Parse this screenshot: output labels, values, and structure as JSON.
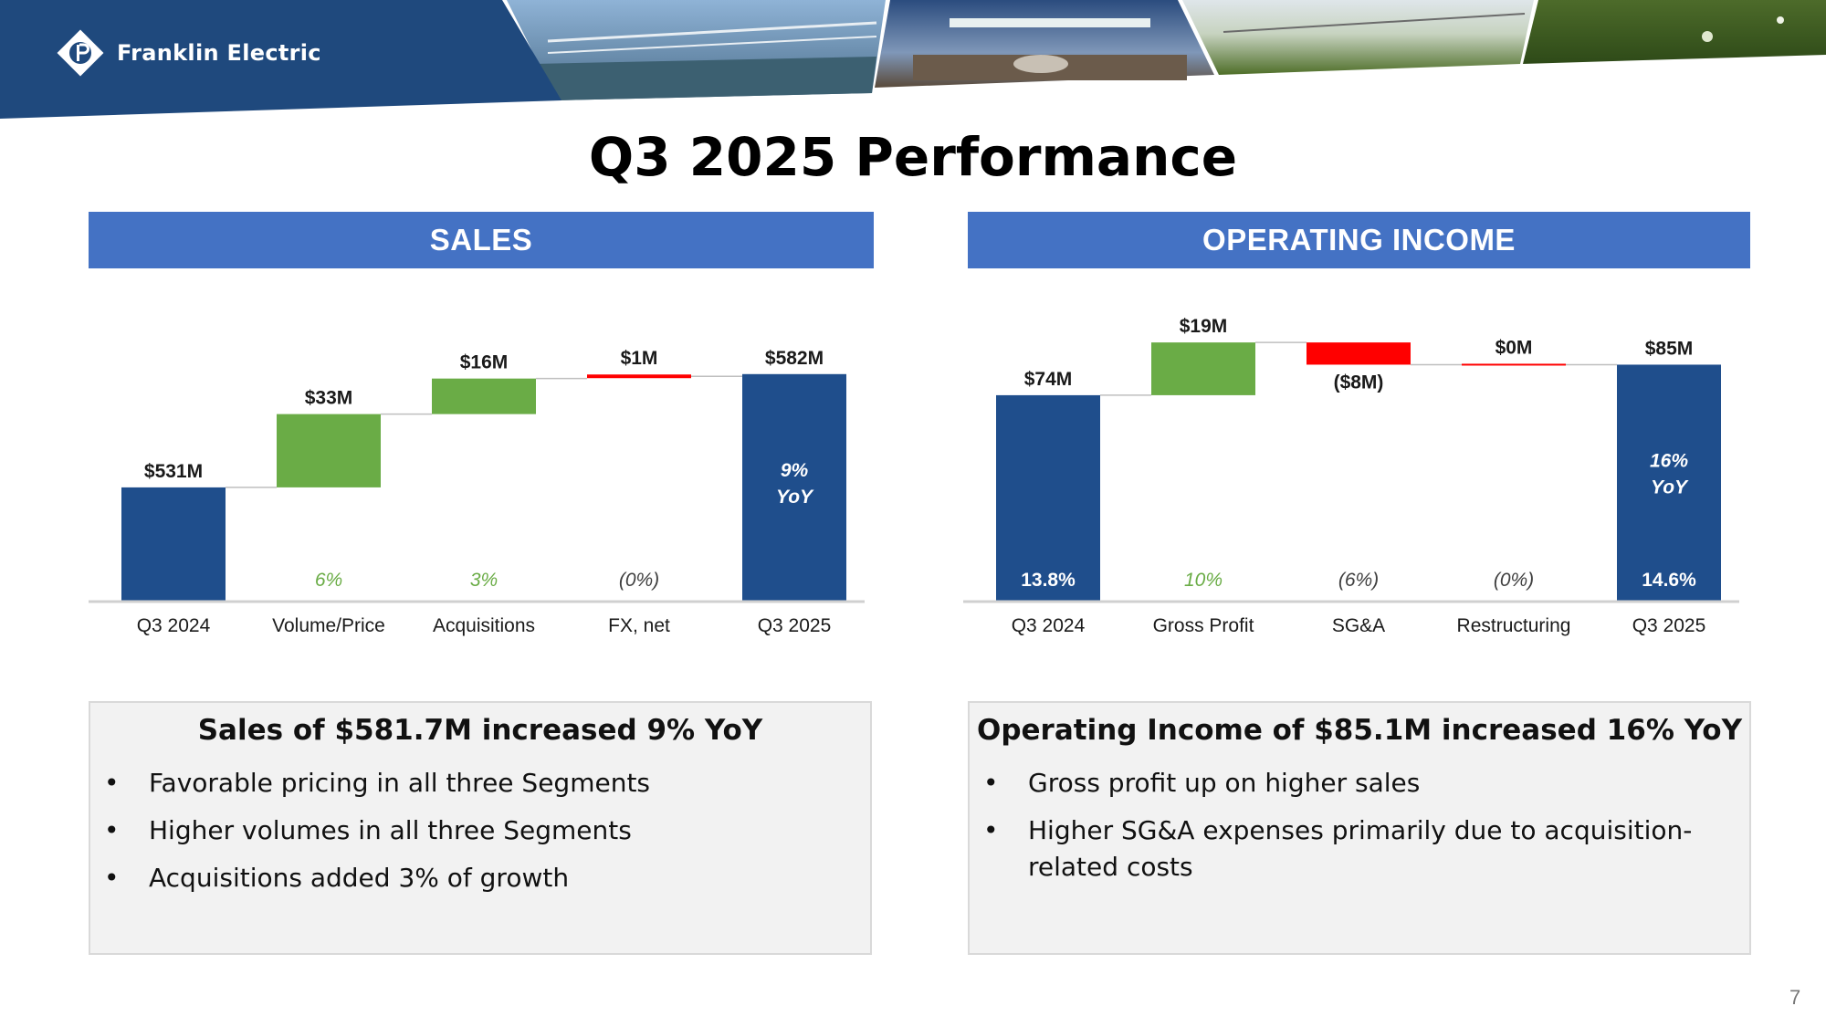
{
  "header": {
    "brand_name": "Franklin Electric",
    "brand_color": "#1f497d"
  },
  "page_title": "Q3 2025 Performance",
  "page_number": "7",
  "chart_data": [
    {
      "type": "waterfall",
      "title": "SALES",
      "categories": [
        "Q3 2024",
        "Volume/Price",
        "Acquisitions",
        "FX, net",
        "Q3 2025"
      ],
      "values": [
        531,
        33,
        16,
        1,
        582
      ],
      "kinds": [
        "total",
        "increase",
        "increase",
        "increase",
        "total"
      ],
      "value_labels": [
        "$531M",
        "$33M",
        "$16M",
        "$1M",
        "$582M"
      ],
      "inner_labels": [
        "",
        "6%",
        "3%",
        "(0%)",
        ""
      ],
      "yoy_label": [
        "9%",
        "YoY"
      ],
      "ylim": [
        480,
        600
      ],
      "colors": {
        "total": "#1f4e8c",
        "increase": "#6aac46",
        "small": "#ff0000"
      }
    },
    {
      "type": "waterfall",
      "title": "OPERATING INCOME",
      "categories": [
        "Q3 2024",
        "Gross Profit",
        "SG&A",
        "Restructuring",
        "Q3 2025"
      ],
      "values": [
        74,
        19,
        -8,
        0,
        85
      ],
      "kinds": [
        "total",
        "increase",
        "decrease",
        "decrease",
        "total"
      ],
      "value_labels": [
        "$74M",
        "$19M",
        "($8M)",
        "$0M",
        "$85M"
      ],
      "inner_labels": [
        "13.8%",
        "10%",
        "(6%)",
        "(0%)",
        "14.6%"
      ],
      "yoy_label": [
        "16%",
        "YoY"
      ],
      "ylim": [
        0,
        96
      ],
      "colors": {
        "total": "#1f4e8c",
        "increase": "#6aac46",
        "decrease": "#ff0000"
      }
    }
  ],
  "sales_summary": {
    "title": "Sales of $581.7M increased 9% YoY",
    "bullets": [
      "Favorable pricing in all three Segments",
      "Higher volumes in all three Segments",
      "Acquisitions added 3% of growth"
    ]
  },
  "oi_summary": {
    "title": "Operating Income of $85.1M increased 16% YoY",
    "bullets": [
      "Gross profit up on higher sales",
      "Higher SG&A expenses primarily due to acquisition-related costs"
    ]
  },
  "bullet_glyph": "•"
}
